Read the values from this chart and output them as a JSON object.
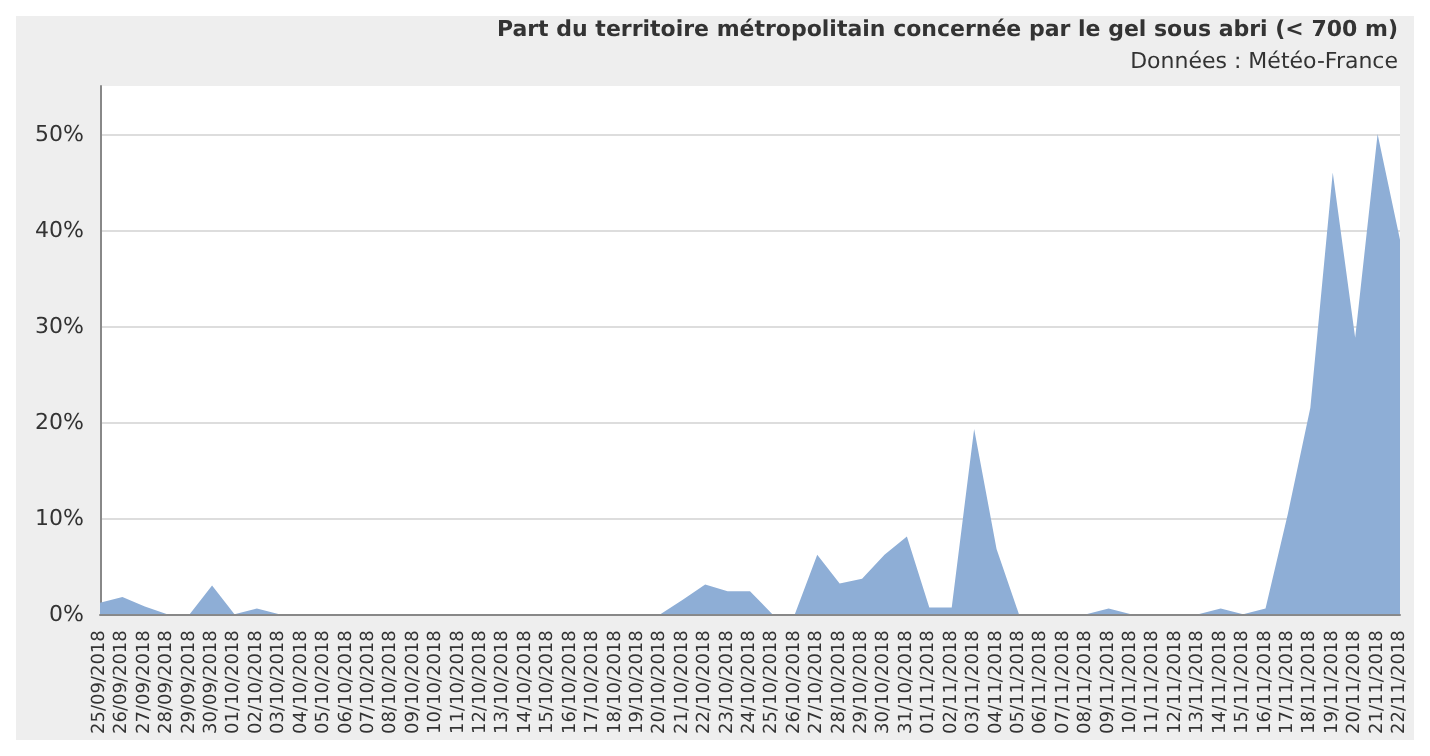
{
  "chart_data": {
    "type": "area",
    "title": "Part du territoire métropolitain concernée par le gel sous abri (< 700 m)",
    "subtitle": "Données : Météo-France",
    "categories": [
      "25/09/2018",
      "26/09/2018",
      "27/09/2018",
      "28/09/2018",
      "29/09/2018",
      "30/09/2018",
      "01/10/2018",
      "02/10/2018",
      "03/10/2018",
      "04/10/2018",
      "05/10/2018",
      "06/10/2018",
      "07/10/2018",
      "08/10/2018",
      "09/10/2018",
      "10/10/2018",
      "11/10/2018",
      "12/10/2018",
      "13/10/2018",
      "14/10/2018",
      "15/10/2018",
      "16/10/2018",
      "17/10/2018",
      "18/10/2018",
      "19/10/2018",
      "20/10/2018",
      "21/10/2018",
      "22/10/2018",
      "23/10/2018",
      "24/10/2018",
      "25/10/2018",
      "26/10/2018",
      "27/10/2018",
      "28/10/2018",
      "29/10/2018",
      "30/10/2018",
      "31/10/2018",
      "01/11/2018",
      "02/11/2018",
      "03/11/2018",
      "04/11/2018",
      "05/11/2018",
      "06/11/2018",
      "07/11/2018",
      "08/11/2018",
      "09/11/2018",
      "10/11/2018",
      "11/11/2018",
      "12/11/2018",
      "13/11/2018",
      "14/11/2018",
      "15/11/2018",
      "16/11/2018",
      "17/11/2018",
      "18/11/2018",
      "19/11/2018",
      "20/11/2018",
      "21/11/2018",
      "22/11/2018"
    ],
    "values": [
      1.2,
      1.8,
      0.8,
      0,
      0,
      3.0,
      0,
      0.6,
      0,
      0,
      0,
      0,
      0,
      0,
      0,
      0,
      0,
      0,
      0,
      0,
      0,
      0,
      0,
      0,
      0,
      0,
      1.5,
      3.1,
      2.4,
      2.4,
      0,
      0,
      6.2,
      3.2,
      3.7,
      6.2,
      8.1,
      0.7,
      0.7,
      19.3,
      6.8,
      0,
      0,
      0,
      0,
      0.6,
      0,
      0,
      0,
      0,
      0.6,
      0,
      0.6,
      10.5,
      21.5,
      46,
      28.8,
      50,
      39
    ],
    "color": "#8eaed6",
    "ylim": [
      0,
      55
    ],
    "yticks": [
      {
        "value": 0,
        "label": "0%"
      },
      {
        "value": 10,
        "label": "10%"
      },
      {
        "value": 20,
        "label": "20%"
      },
      {
        "value": 30,
        "label": "30%"
      },
      {
        "value": 40,
        "label": "40%"
      },
      {
        "value": 50,
        "label": "50%"
      }
    ],
    "grid": "y"
  }
}
